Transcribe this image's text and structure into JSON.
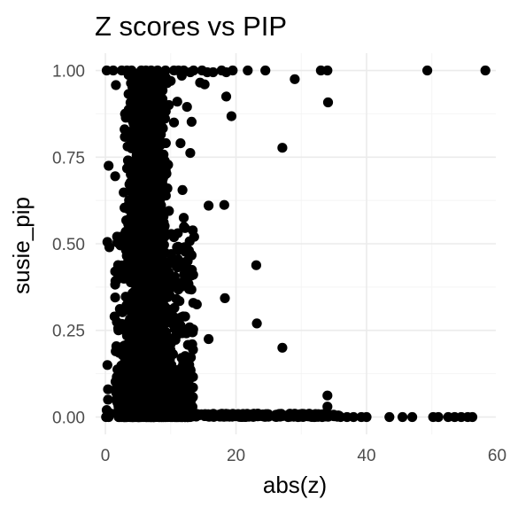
{
  "chart_data": {
    "type": "scatter",
    "title": "Z scores vs PIP",
    "xlabel": "abs(z)",
    "ylabel": "susie_pip",
    "xlim": [
      -1.5,
      59.8
    ],
    "ylim": [
      -0.05,
      1.05
    ],
    "x_ticks": [
      0,
      20,
      40,
      60
    ],
    "x_tick_labels": [
      "0",
      "20",
      "40",
      "60"
    ],
    "y_ticks": [
      0,
      0.25,
      0.5,
      0.75,
      1
    ],
    "y_tick_labels": [
      "0.00",
      "0.25",
      "0.50",
      "0.75",
      "1.00"
    ],
    "grid": true,
    "legend": "none",
    "point_color": "#000000",
    "series": [
      {
        "points": [
          [
            58.2,
            1.0
          ],
          [
            49.3,
            1.0
          ],
          [
            34.0,
            1.0
          ],
          [
            33.0,
            1.0
          ],
          [
            29.0,
            0.975
          ],
          [
            24.5,
            1.0
          ],
          [
            21.8,
            1.0
          ],
          [
            19.5,
            1.0
          ],
          [
            18.5,
            0.995
          ],
          [
            17.8,
            1.0
          ],
          [
            16.5,
            0.995
          ],
          [
            15.6,
            0.995
          ],
          [
            14.8,
            1.0
          ],
          [
            13.5,
            1.0
          ],
          [
            12.0,
            1.0
          ],
          [
            10.5,
            1.0
          ],
          [
            9.2,
            1.0
          ],
          [
            8.0,
            1.0
          ],
          [
            7.0,
            1.0
          ],
          [
            5.5,
            1.0
          ],
          [
            4.0,
            1.0
          ],
          [
            2.5,
            1.0
          ],
          [
            1.2,
            1.0
          ],
          [
            0.2,
            1.0
          ],
          [
            3.3,
            1.0
          ],
          [
            6.2,
            1.0
          ],
          [
            11.2,
            1.0
          ],
          [
            13.0,
            0.995
          ],
          [
            1.6,
            0.958
          ],
          [
            14.5,
            0.965
          ],
          [
            15.2,
            0.96
          ],
          [
            10.0,
            0.97
          ],
          [
            11.7,
            0.985
          ],
          [
            8.6,
            0.985
          ],
          [
            34.1,
            0.908
          ],
          [
            18.5,
            0.925
          ],
          [
            12.5,
            0.895
          ],
          [
            11.0,
            0.91
          ],
          [
            19.3,
            0.868
          ],
          [
            13.2,
            0.852
          ],
          [
            3.0,
            0.875
          ],
          [
            10.5,
            0.85
          ],
          [
            27.1,
            0.777
          ],
          [
            13.0,
            0.762
          ],
          [
            4.0,
            0.81
          ],
          [
            8.2,
            0.82
          ],
          [
            11.5,
            0.79
          ],
          [
            0.5,
            0.725
          ],
          [
            1.5,
            0.695
          ],
          [
            3.5,
            0.74
          ],
          [
            2.8,
            0.648
          ],
          [
            11.8,
            0.655
          ],
          [
            9.5,
            0.66
          ],
          [
            15.8,
            0.61
          ],
          [
            18.2,
            0.612
          ],
          [
            12.0,
            0.575
          ],
          [
            13.6,
            0.52
          ],
          [
            11.2,
            0.482
          ],
          [
            0.6,
            0.49
          ],
          [
            0.3,
            0.505
          ],
          [
            2.2,
            0.52
          ],
          [
            12.6,
            0.45
          ],
          [
            23.1,
            0.438
          ],
          [
            1.5,
            0.345
          ],
          [
            1.4,
            0.29
          ],
          [
            2.0,
            0.25
          ],
          [
            18.3,
            0.343
          ],
          [
            15.8,
            0.225
          ],
          [
            23.2,
            0.27
          ],
          [
            27.1,
            0.2
          ],
          [
            13.3,
            0.21
          ],
          [
            14.0,
            0.325
          ],
          [
            34.0,
            0.062
          ],
          [
            34.0,
            0.03
          ],
          [
            30.5,
            0.002
          ],
          [
            25.0,
            0.001
          ],
          [
            20.0,
            0.003
          ],
          [
            17.5,
            0.004
          ],
          [
            22.0,
            0.001
          ],
          [
            28.0,
            0.0
          ],
          [
            32.0,
            0.0
          ],
          [
            36.0,
            0.0
          ],
          [
            38.0,
            0.0
          ],
          [
            40.0,
            0.0
          ],
          [
            43.5,
            0.0
          ],
          [
            45.5,
            0.0
          ],
          [
            47.0,
            0.0
          ],
          [
            50.2,
            0.0
          ],
          [
            51.0,
            0.0
          ],
          [
            52.5,
            0.0
          ],
          [
            53.5,
            0.0
          ],
          [
            54.5,
            0.0
          ],
          [
            55.5,
            0.0
          ],
          [
            56.2,
            0.0
          ],
          [
            26.0,
            0.001
          ],
          [
            29.5,
            0.0
          ],
          [
            31.5,
            0.001
          ],
          [
            33.2,
            0.0
          ],
          [
            35.5,
            0.001
          ],
          [
            37.0,
            0.0
          ],
          [
            39.2,
            0.0
          ],
          [
            21.0,
            0.002
          ],
          [
            19.0,
            0.001
          ],
          [
            16.5,
            0.004
          ],
          [
            15.0,
            0.006
          ],
          [
            0.1,
            0.0
          ],
          [
            0.2,
            0.02
          ],
          [
            0.4,
            0.05
          ],
          [
            0.3,
            0.003
          ],
          [
            0.5,
            0.0
          ],
          [
            0.8,
            0.01
          ],
          [
            0.3,
            0.15
          ],
          [
            0.4,
            0.08
          ]
        ]
      }
    ]
  }
}
